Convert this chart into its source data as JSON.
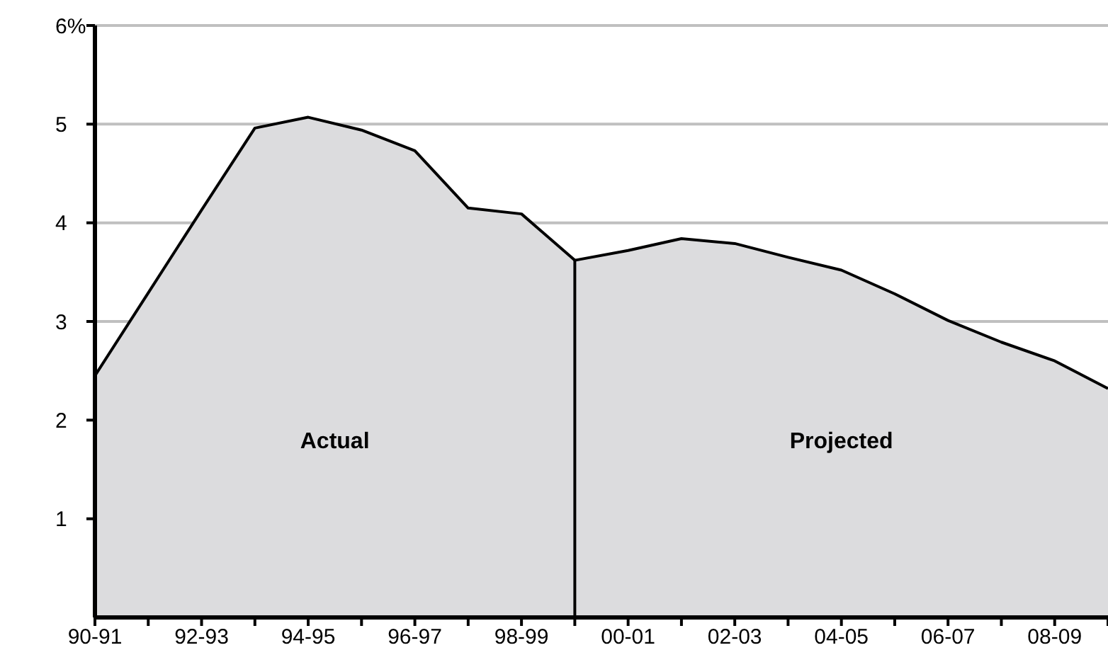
{
  "chart_data": {
    "type": "area",
    "categories": [
      "90-91",
      null,
      "92-93",
      null,
      "94-95",
      null,
      "96-97",
      null,
      "98-99",
      null,
      "00-01",
      null,
      "02-03",
      null,
      "04-05",
      null,
      "06-07",
      null,
      "08-09",
      null
    ],
    "series": [
      {
        "name": "Actual",
        "color": "#dcdcde",
        "values": [
          2.45,
          3.29,
          4.13,
          4.96,
          5.07,
          4.94,
          4.73,
          4.15,
          4.09,
          3.62,
          null,
          null,
          null,
          null,
          null,
          null,
          null,
          null,
          null,
          null
        ]
      },
      {
        "name": "Projected",
        "color": "#dcdcde",
        "values": [
          null,
          null,
          null,
          null,
          null,
          null,
          null,
          null,
          null,
          3.62,
          3.72,
          3.84,
          3.79,
          3.65,
          3.52,
          3.28,
          3.01,
          2.79,
          2.6,
          2.32
        ]
      }
    ],
    "ylim": [
      0,
      6
    ],
    "yticks": [
      1,
      2,
      3,
      4,
      5,
      {
        "value": 6,
        "label": "6%"
      }
    ],
    "grid": "y",
    "legend": false
  }
}
